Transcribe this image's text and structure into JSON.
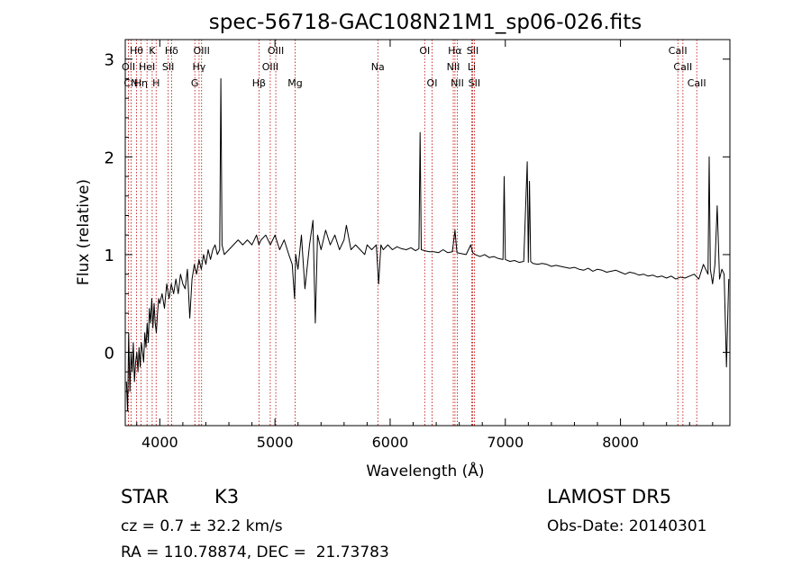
{
  "chart_data": {
    "type": "line",
    "title": "spec-56718-GAC108N21M1_sp06-026.fits",
    "xlabel": "Wavelength (Å)",
    "ylabel": "Flux (relative)",
    "xlim": [
      3700,
      8950
    ],
    "ylim": [
      -0.75,
      3.2
    ],
    "xticks": [
      4000,
      5000,
      6000,
      7000,
      8000
    ],
    "yticks": [
      0,
      1,
      2,
      3
    ],
    "grid": false,
    "series": [
      {
        "x": [
          3710,
          3720,
          3730,
          3740,
          3750,
          3760,
          3770,
          3780,
          3790,
          3800,
          3810,
          3820,
          3830,
          3840,
          3850,
          3860,
          3870,
          3880,
          3890,
          3900,
          3910,
          3920,
          3930,
          3940,
          3950,
          3960,
          3970,
          3980,
          3990,
          4000,
          4020,
          4040,
          4060,
          4080,
          4100,
          4120,
          4140,
          4160,
          4180,
          4200,
          4220,
          4240,
          4260,
          4280,
          4300,
          4320,
          4340,
          4360,
          4380,
          4400,
          4420,
          4440,
          4460,
          4480,
          4500,
          4520,
          4530,
          4540,
          4560,
          4600,
          4640,
          4680,
          4720,
          4760,
          4800,
          4840,
          4860,
          4880,
          4920,
          4960,
          5000,
          5040,
          5080,
          5120,
          5150,
          5170,
          5180,
          5200,
          5230,
          5260,
          5300,
          5330,
          5350,
          5370,
          5400,
          5440,
          5480,
          5520,
          5560,
          5600,
          5620,
          5660,
          5700,
          5740,
          5780,
          5800,
          5840,
          5880,
          5900,
          5920,
          5940,
          5980,
          6020,
          6060,
          6100,
          6140,
          6180,
          6220,
          6250,
          6260,
          6270,
          6300,
          6340,
          6380,
          6420,
          6460,
          6500,
          6540,
          6563,
          6580,
          6620,
          6660,
          6700,
          6717,
          6740,
          6780,
          6820,
          6860,
          6900,
          6940,
          6980,
          6990,
          7000,
          7040,
          7080,
          7120,
          7160,
          7190,
          7200,
          7210,
          7220,
          7240,
          7280,
          7320,
          7360,
          7400,
          7440,
          7480,
          7520,
          7560,
          7600,
          7640,
          7680,
          7720,
          7760,
          7800,
          7840,
          7880,
          7920,
          7960,
          8000,
          8040,
          8080,
          8120,
          8160,
          8200,
          8240,
          8280,
          8320,
          8360,
          8400,
          8440,
          8480,
          8520,
          8560,
          8600,
          8640,
          8680,
          8720,
          8760,
          8770,
          8780,
          8800,
          8820,
          8840,
          8860,
          8880,
          8900,
          8920,
          8940
        ],
        "y": [
          -0.3,
          -0.6,
          0.2,
          -0.4,
          0.0,
          -0.2,
          0.1,
          -0.3,
          -0.1,
          0.0,
          -0.2,
          0.05,
          -0.15,
          0.1,
          0.0,
          -0.1,
          0.2,
          0.05,
          0.3,
          0.1,
          0.45,
          0.3,
          0.55,
          0.25,
          0.5,
          0.3,
          0.2,
          0.4,
          0.55,
          0.5,
          0.6,
          0.45,
          0.7,
          0.55,
          0.7,
          0.6,
          0.75,
          0.6,
          0.8,
          0.7,
          0.65,
          0.85,
          0.35,
          0.75,
          0.9,
          0.8,
          0.95,
          0.85,
          1.0,
          0.9,
          1.05,
          0.95,
          1.05,
          1.1,
          1.0,
          1.05,
          2.8,
          1.1,
          1.0,
          1.05,
          1.1,
          1.15,
          1.1,
          1.15,
          1.1,
          1.2,
          1.1,
          1.15,
          1.2,
          1.1,
          1.2,
          1.05,
          1.15,
          1.0,
          0.9,
          0.55,
          1.0,
          0.85,
          1.2,
          0.65,
          1.1,
          1.35,
          0.3,
          1.2,
          1.05,
          1.25,
          1.1,
          1.2,
          1.05,
          1.15,
          1.3,
          1.05,
          1.1,
          1.05,
          1.0,
          1.1,
          1.05,
          1.1,
          0.7,
          1.1,
          1.05,
          1.1,
          1.05,
          1.08,
          1.06,
          1.05,
          1.07,
          1.04,
          1.06,
          2.25,
          1.05,
          1.04,
          1.03,
          1.03,
          1.02,
          1.05,
          1.02,
          1.03,
          1.25,
          1.02,
          1.01,
          1.0,
          1.1,
          1.02,
          1.0,
          0.98,
          1.0,
          0.97,
          0.98,
          0.96,
          0.95,
          1.8,
          0.95,
          0.93,
          0.94,
          0.92,
          0.93,
          1.95,
          0.92,
          1.75,
          0.93,
          0.91,
          0.9,
          0.91,
          0.9,
          0.88,
          0.89,
          0.88,
          0.87,
          0.86,
          0.87,
          0.85,
          0.84,
          0.86,
          0.83,
          0.85,
          0.84,
          0.82,
          0.83,
          0.84,
          0.82,
          0.8,
          0.82,
          0.81,
          0.79,
          0.8,
          0.78,
          0.79,
          0.77,
          0.78,
          0.76,
          0.78,
          0.75,
          0.77,
          0.76,
          0.78,
          0.8,
          0.75,
          0.9,
          0.8,
          2.0,
          0.85,
          0.7,
          0.9,
          1.5,
          0.75,
          0.85,
          0.8,
          -0.15,
          0.75
        ]
      }
    ],
    "lines": [
      {
        "wl": 3728,
        "label": "OII",
        "row": 1
      },
      {
        "wl": 3750,
        "label": "CN",
        "row": 2
      },
      {
        "wl": 3798,
        "label": "Hθ",
        "row": 0
      },
      {
        "wl": 3836,
        "label": "Hη",
        "row": 2
      },
      {
        "wl": 3889,
        "label": "HeI",
        "row": 1
      },
      {
        "wl": 3934,
        "label": "K",
        "row": 0
      },
      {
        "wl": 3968,
        "label": "H",
        "row": 2
      },
      {
        "wl": 4073,
        "label": "SII",
        "row": 1
      },
      {
        "wl": 4102,
        "label": "Hδ",
        "row": 0
      },
      {
        "wl": 4304,
        "label": "G",
        "row": 2
      },
      {
        "wl": 4341,
        "label": "Hγ",
        "row": 1
      },
      {
        "wl": 4363,
        "label": "OIII",
        "row": 0
      },
      {
        "wl": 4861,
        "label": "Hβ",
        "row": 2
      },
      {
        "wl": 4959,
        "label": "OIII",
        "row": 1
      },
      {
        "wl": 5007,
        "label": "OIII",
        "row": 0
      },
      {
        "wl": 5175,
        "label": "Mg",
        "row": 2
      },
      {
        "wl": 5893,
        "label": "Na",
        "row": 1
      },
      {
        "wl": 6300,
        "label": "OI",
        "row": 0
      },
      {
        "wl": 6364,
        "label": "OI",
        "row": 2
      },
      {
        "wl": 6548,
        "label": "NII",
        "row": 1
      },
      {
        "wl": 6563,
        "label": "Hα",
        "row": 0
      },
      {
        "wl": 6583,
        "label": "NII",
        "row": 2
      },
      {
        "wl": 6708,
        "label": "Li",
        "row": 1
      },
      {
        "wl": 6716,
        "label": "SII",
        "row": 0
      },
      {
        "wl": 6731,
        "label": "SII",
        "row": 2
      },
      {
        "wl": 8498,
        "label": "CaII",
        "row": 0
      },
      {
        "wl": 8542,
        "label": "CaII",
        "row": 1
      },
      {
        "wl": 8662,
        "label": "CaII",
        "row": 2
      }
    ]
  },
  "info": {
    "obj_type": "STAR",
    "obj_class": "K3",
    "survey": "LAMOST DR5",
    "cz": "cz = 0.7 ± 32.2 km/s",
    "obs_date": "Obs-Date: 20140301",
    "radec": "RA = 110.78874, DEC =  21.73783"
  },
  "colors": {
    "spectrum": "#000000",
    "line_markers": "#c00000"
  }
}
